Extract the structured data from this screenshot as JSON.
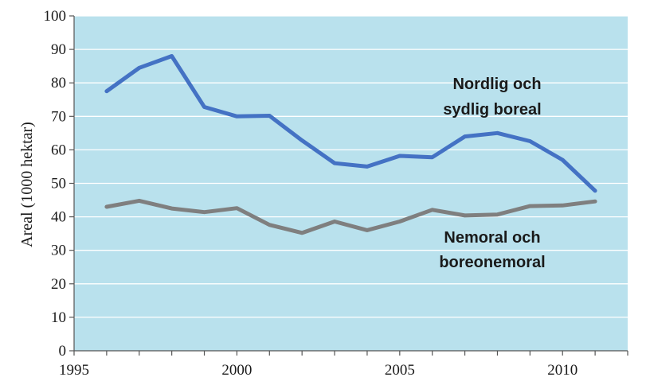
{
  "chart_data": {
    "type": "line",
    "title": "",
    "xlabel": "",
    "ylabel": "Areal (1000 hektar)",
    "xlim": [
      1995,
      2012
    ],
    "ylim": [
      0,
      100
    ],
    "x_ticks": [
      1995,
      2000,
      2005,
      2010
    ],
    "y_ticks": [
      0,
      10,
      20,
      30,
      40,
      50,
      60,
      70,
      80,
      90,
      100
    ],
    "grid": "horizontal",
    "plot_background": "#b9e1ed",
    "x": [
      1996,
      1997,
      1998,
      1999,
      2000,
      2001,
      2002,
      2003,
      2004,
      2005,
      2006,
      2007,
      2008,
      2009,
      2010,
      2011
    ],
    "series": [
      {
        "color": "#4472c4",
        "values": [
          77.5,
          84.5,
          88.0,
          72.8,
          70.0,
          70.2,
          62.8,
          56.0,
          55.0,
          58.2,
          57.8,
          64.0,
          65.0,
          62.6,
          57.0,
          47.8
        ]
      },
      {
        "color": "#7f7f7f",
        "values": [
          43.0,
          44.8,
          42.5,
          41.4,
          42.6,
          37.6,
          35.2,
          38.6,
          36.0,
          38.6,
          42.1,
          40.4,
          40.7,
          43.2,
          43.4,
          44.6
        ]
      }
    ],
    "annotations": [
      {
        "lines": [
          "Nordlig och",
          "sydlig boreal"
        ]
      },
      {
        "lines": [
          "Nemoral och",
          "boreonemoral"
        ]
      }
    ]
  }
}
